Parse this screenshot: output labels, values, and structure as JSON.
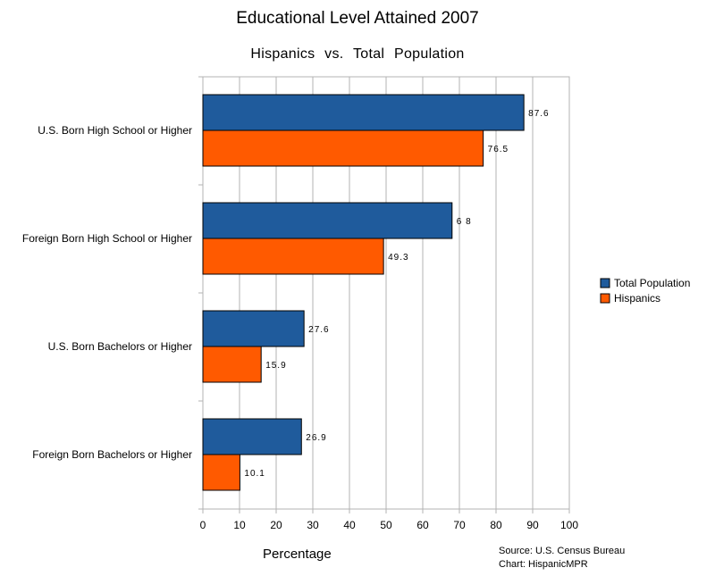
{
  "chart_data": {
    "type": "bar",
    "orientation": "horizontal",
    "title": "Educational Level Attained 2007",
    "subtitle": "Hispanics  vs.  Total  Population",
    "xlabel": "Percentage",
    "xlim": [
      0,
      100
    ],
    "xticks": [
      "0",
      "10",
      "20",
      "30",
      "40",
      "50",
      "60",
      "70",
      "80",
      "90",
      "100"
    ],
    "categories": [
      "U.S. Born High School or Higher",
      "Foreign Born High School or Higher",
      "U.S. Born Bachelors or Higher",
      "Foreign Born Bachelors or Higher"
    ],
    "series": [
      {
        "name": "Total  Population",
        "color": "#1f5b9c",
        "values": [
          87.6,
          68,
          27.6,
          26.9
        ],
        "labels": [
          "87.6",
          "6 8",
          "27.6",
          "26.9"
        ]
      },
      {
        "name": "Hispanics",
        "color": "#ff5a00",
        "values": [
          76.5,
          49.3,
          15.9,
          10.1
        ],
        "labels": [
          "76.5",
          "49.3",
          "15.9",
          "10.1"
        ]
      }
    ],
    "grid": true,
    "legend_position": "right"
  },
  "source_line1": "Source: U.S. Census Bureau",
  "source_line2": "Chart: HispanicMPR"
}
